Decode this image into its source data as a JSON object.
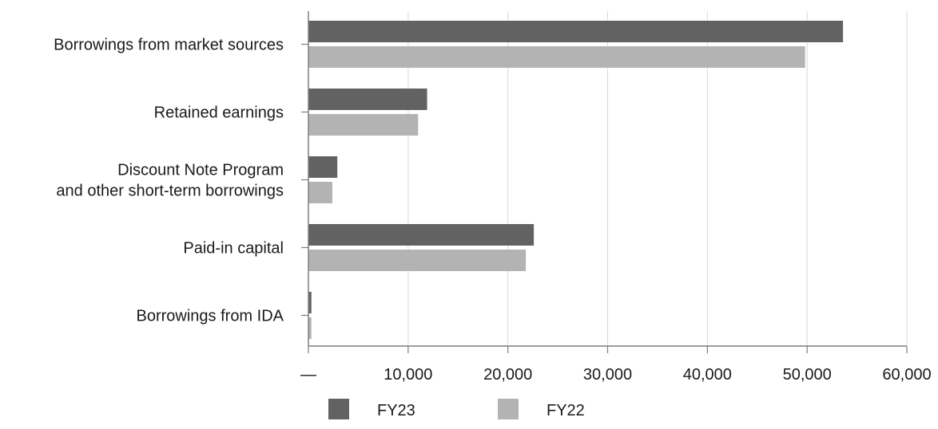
{
  "chart_data": {
    "type": "bar",
    "orientation": "horizontal",
    "categories": [
      [
        "Borrowings from market sources"
      ],
      [
        "Retained earnings"
      ],
      [
        "Discount Note Program",
        "and other short-term borrowings"
      ],
      [
        "Paid-in capital"
      ],
      [
        "Borrowings from IDA"
      ]
    ],
    "series": [
      {
        "name": "FY23",
        "color": "#626262",
        "values": [
          53600,
          11900,
          2900,
          22600,
          300
        ]
      },
      {
        "name": "FY22",
        "color": "#b3b3b3",
        "values": [
          49800,
          11000,
          2400,
          21800,
          300
        ]
      }
    ],
    "xlim": [
      0,
      60000
    ],
    "x_ticks": [
      0,
      10000,
      20000,
      30000,
      40000,
      50000,
      60000
    ],
    "x_tick_labels": [
      "—",
      "10,000",
      "20,000",
      "30,000",
      "40,000",
      "50,000",
      "60,000"
    ],
    "grid": true,
    "legend_position": "bottom-center"
  }
}
